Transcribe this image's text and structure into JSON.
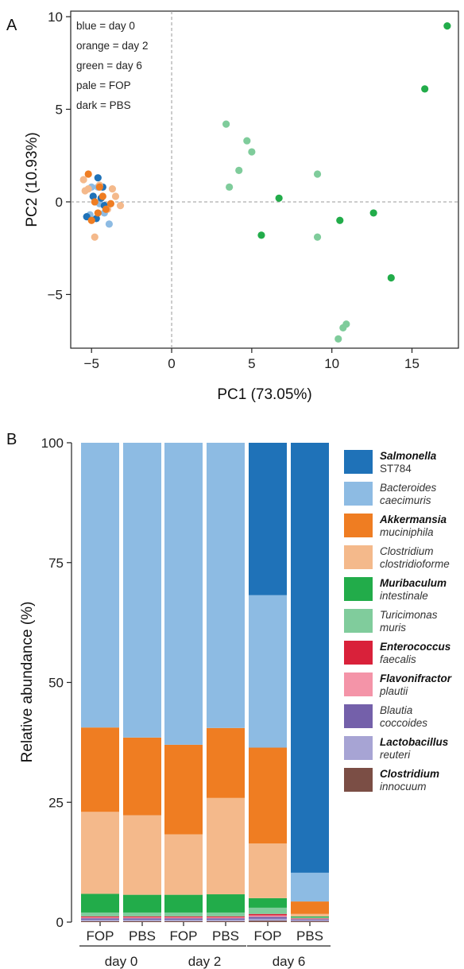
{
  "panels": {
    "a_label": "A",
    "b_label": "B"
  },
  "chart_data": [
    {
      "type": "scatter",
      "xlabel": "PC1 (73.05%)",
      "ylabel": "PC2 (10.93%)",
      "xlim": [
        -6.3,
        17.9
      ],
      "ylim": [
        -7.9,
        10.3
      ],
      "xticks": [
        -5,
        0,
        5,
        10,
        15
      ],
      "yticks": [
        -5,
        0,
        5,
        10
      ],
      "tick_labels_x": [
        "−5",
        "0",
        "5",
        "10",
        "15"
      ],
      "tick_labels_y": [
        "−5",
        "0",
        "5",
        "10"
      ],
      "reference_lines": {
        "x": 0,
        "y": 0,
        "style": "dashed"
      },
      "key_text": [
        "blue = day 0",
        "orange = day 2",
        "green = day 6",
        "pale = FOP",
        "dark = PBS"
      ],
      "colors": {
        "day0_FOP": "#8dbbe3",
        "day0_PBS": "#1f72b8",
        "day2_FOP": "#f4b98b",
        "day2_PBS": "#ef7d22",
        "day6_FOP": "#7fcc9b",
        "day6_PBS": "#22ac4a"
      },
      "series": [
        {
          "group": "day0_FOP",
          "points": [
            [
              -4.6,
              0.8
            ],
            [
              -4.9,
              0.3
            ],
            [
              -5.1,
              -0.7
            ],
            [
              -4.2,
              -0.6
            ],
            [
              -3.9,
              -1.2
            ],
            [
              -4.5,
              -0.1
            ],
            [
              -5.0,
              0.8
            ]
          ]
        },
        {
          "group": "day0_PBS",
          "points": [
            [
              -4.6,
              1.3
            ],
            [
              -4.4,
              0.2
            ],
            [
              -4.9,
              0.3
            ],
            [
              -4.2,
              -0.2
            ],
            [
              -5.3,
              -0.8
            ],
            [
              -4.7,
              -0.9
            ],
            [
              -4.3,
              0.8
            ]
          ]
        },
        {
          "group": "day2_FOP",
          "points": [
            [
              -5.5,
              1.2
            ],
            [
              -4.5,
              0.9
            ],
            [
              -3.5,
              0.3
            ],
            [
              -3.2,
              -0.2
            ],
            [
              -3.7,
              0.7
            ],
            [
              -4.8,
              -1.9
            ],
            [
              -5.2,
              0.7
            ],
            [
              -4.0,
              -0.4
            ],
            [
              -5.4,
              0.6
            ]
          ]
        },
        {
          "group": "day2_PBS",
          "points": [
            [
              -5.2,
              1.5
            ],
            [
              -4.5,
              0.8
            ],
            [
              -4.3,
              0.3
            ],
            [
              -5.0,
              -1.0
            ],
            [
              -4.8,
              0.0
            ],
            [
              -4.1,
              -0.4
            ],
            [
              -4.6,
              -0.6
            ],
            [
              -3.8,
              -0.1
            ]
          ]
        },
        {
          "group": "day6_FOP",
          "points": [
            [
              3.4,
              4.2
            ],
            [
              4.7,
              3.3
            ],
            [
              5.0,
              2.7
            ],
            [
              4.2,
              1.7
            ],
            [
              3.6,
              0.8
            ],
            [
              9.1,
              1.5
            ],
            [
              9.1,
              -1.9
            ],
            [
              10.9,
              -6.6
            ],
            [
              10.7,
              -6.8
            ],
            [
              10.4,
              -7.4
            ]
          ]
        },
        {
          "group": "day6_PBS",
          "points": [
            [
              17.2,
              9.5
            ],
            [
              15.8,
              6.1
            ],
            [
              6.7,
              0.2
            ],
            [
              12.6,
              -0.6
            ],
            [
              10.5,
              -1.0
            ],
            [
              5.6,
              -1.8
            ],
            [
              13.7,
              -4.1
            ]
          ]
        }
      ]
    },
    {
      "type": "bar",
      "stacked": true,
      "ylabel": "Relative abundance (%)",
      "ylim": [
        0,
        100
      ],
      "yticks": [
        0,
        25,
        50,
        75,
        100
      ],
      "categories": [
        "FOP",
        "PBS",
        "FOP",
        "PBS",
        "FOP",
        "PBS"
      ],
      "groups": [
        {
          "label": "day 0",
          "bars": [
            0,
            1
          ]
        },
        {
          "label": "day 2",
          "bars": [
            2,
            3
          ]
        },
        {
          "label": "day 6",
          "bars": [
            4,
            5
          ]
        }
      ],
      "series": [
        {
          "genus": "Clostridium",
          "species": "innocuum",
          "italic_bold": true,
          "color": "#7b4e45",
          "values": [
            0.2,
            0.2,
            0.2,
            0.2,
            0.3,
            0.2
          ]
        },
        {
          "genus": "Lactobacillus",
          "species": "reuteri",
          "italic_bold": true,
          "color": "#a7a4d4",
          "values": [
            0.3,
            0.3,
            0.3,
            0.3,
            0.4,
            0.2
          ]
        },
        {
          "genus": "Blautia",
          "species": "coccoides",
          "italic_bold": false,
          "color": "#7460aa",
          "values": [
            0.3,
            0.3,
            0.3,
            0.3,
            0.4,
            0.2
          ]
        },
        {
          "genus": "Flavonifractor",
          "species": "plautii",
          "italic_bold": true,
          "color": "#f494a8",
          "values": [
            0.2,
            0.2,
            0.2,
            0.2,
            0.3,
            0.1
          ]
        },
        {
          "genus": "Enterococcus",
          "species": "faecalis",
          "italic_bold": true,
          "color": "#d9213a",
          "values": [
            0.2,
            0.2,
            0.2,
            0.2,
            0.3,
            0.1
          ]
        },
        {
          "genus": "Turicimonas",
          "species": "muris",
          "italic_bold": false,
          "color": "#80cc9c",
          "values": [
            0.8,
            0.8,
            0.8,
            0.8,
            1.3,
            0.2
          ]
        },
        {
          "genus": "Muribaculum",
          "species": "intestinale",
          "italic_bold": true,
          "color": "#22ac4a",
          "values": [
            3.9,
            3.7,
            3.7,
            3.8,
            2.0,
            0.2
          ]
        },
        {
          "genus": "Clostridium",
          "species": "clostridioforme",
          "italic_bold": false,
          "color": "#f4b98b",
          "values": [
            17.1,
            16.6,
            12.6,
            20.1,
            11.4,
            0.5
          ]
        },
        {
          "genus": "Akkermansia",
          "species": "muciniphila",
          "italic_bold": true,
          "color": "#ef7d22",
          "values": [
            17.6,
            16.2,
            18.7,
            14.6,
            20.0,
            2.6
          ]
        },
        {
          "genus": "Bacteroides",
          "species": "caecimuris",
          "italic_bold": false,
          "color": "#8dbbe3",
          "values": [
            59.4,
            61.5,
            63.0,
            59.5,
            31.8,
            6.0
          ]
        },
        {
          "genus": "Salmonella",
          "species": "ST784",
          "italic_bold": true,
          "color": "#1f72b8",
          "values": [
            0.0,
            0.0,
            0.0,
            0.0,
            31.8,
            89.7
          ]
        }
      ],
      "legend_order": [
        10,
        9,
        8,
        7,
        6,
        5,
        4,
        3,
        2,
        1,
        0
      ],
      "legend_position": "right"
    }
  ]
}
